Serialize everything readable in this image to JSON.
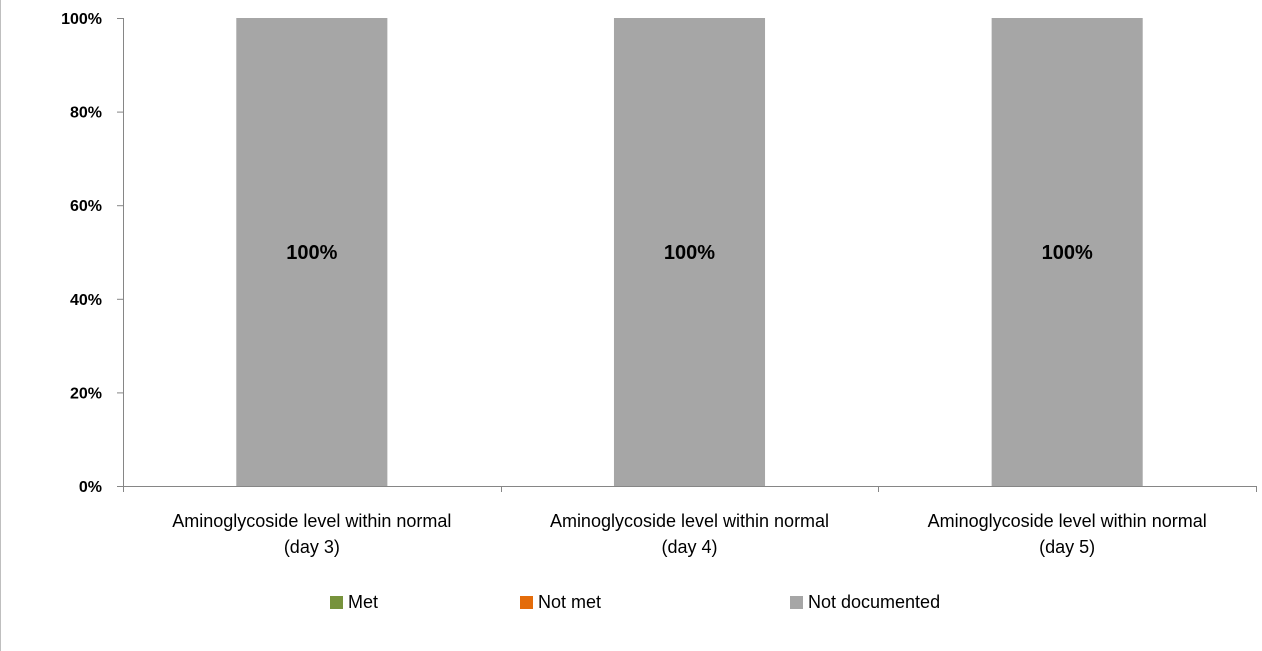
{
  "chart_data": {
    "type": "bar",
    "stacked": true,
    "percent": true,
    "categories": [
      [
        "Aminoglycoside level within normal",
        "(day 3)"
      ],
      [
        "Aminoglycoside level within normal",
        "(day 4)"
      ],
      [
        "Aminoglycoside level within normal",
        "(day 5)"
      ]
    ],
    "series": [
      {
        "name": "Met",
        "values": [
          0,
          0,
          0
        ],
        "color": "#77933C"
      },
      {
        "name": "Not met",
        "values": [
          0,
          0,
          0
        ],
        "color": "#E46C0A"
      },
      {
        "name": "Not documented",
        "values": [
          100,
          100,
          100
        ],
        "color": "#A6A6A6"
      }
    ],
    "data_labels": [
      "100%",
      "100%",
      "100%"
    ],
    "yticks": [
      "0%",
      "20%",
      "40%",
      "60%",
      "80%",
      "100%"
    ],
    "ylim": [
      0,
      100
    ],
    "grid": false,
    "legend_position": "bottom",
    "title": "",
    "xlabel": "",
    "ylabel": ""
  }
}
